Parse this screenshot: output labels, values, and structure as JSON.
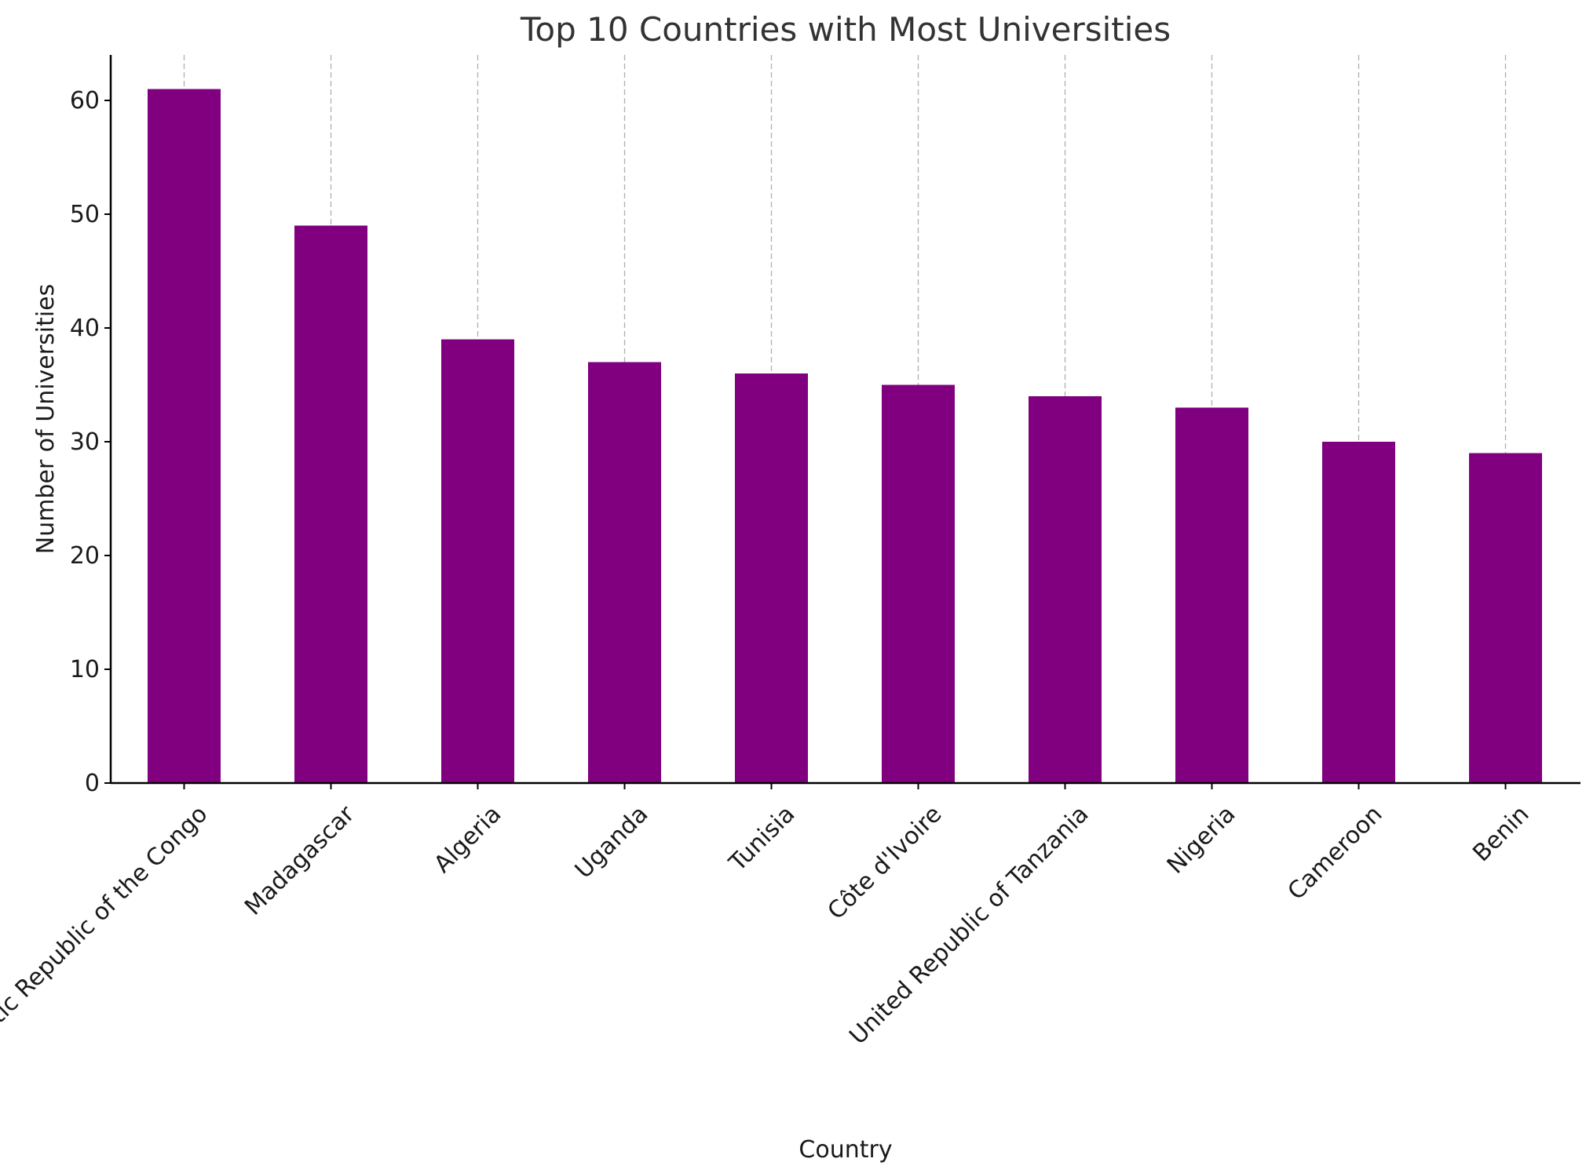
{
  "chart_data": {
    "type": "bar",
    "title": "Top 10 Countries with Most Universities",
    "xlabel": "Country",
    "ylabel": "Number of Universities",
    "categories": [
      "Democratic Republic of the Congo",
      "Madagascar",
      "Algeria",
      "Uganda",
      "Tunisia",
      "Côte d'Ivoire",
      "United Republic of Tanzania",
      "Nigeria",
      "Cameroon",
      "Benin"
    ],
    "values": [
      61,
      49,
      39,
      37,
      36,
      35,
      34,
      33,
      30,
      29
    ],
    "ylim": [
      0,
      64
    ],
    "yticks": [
      0,
      10,
      20,
      30,
      40,
      50,
      60
    ],
    "bar_color": "#800080",
    "grid": "vertical dashed",
    "legend": "none"
  }
}
